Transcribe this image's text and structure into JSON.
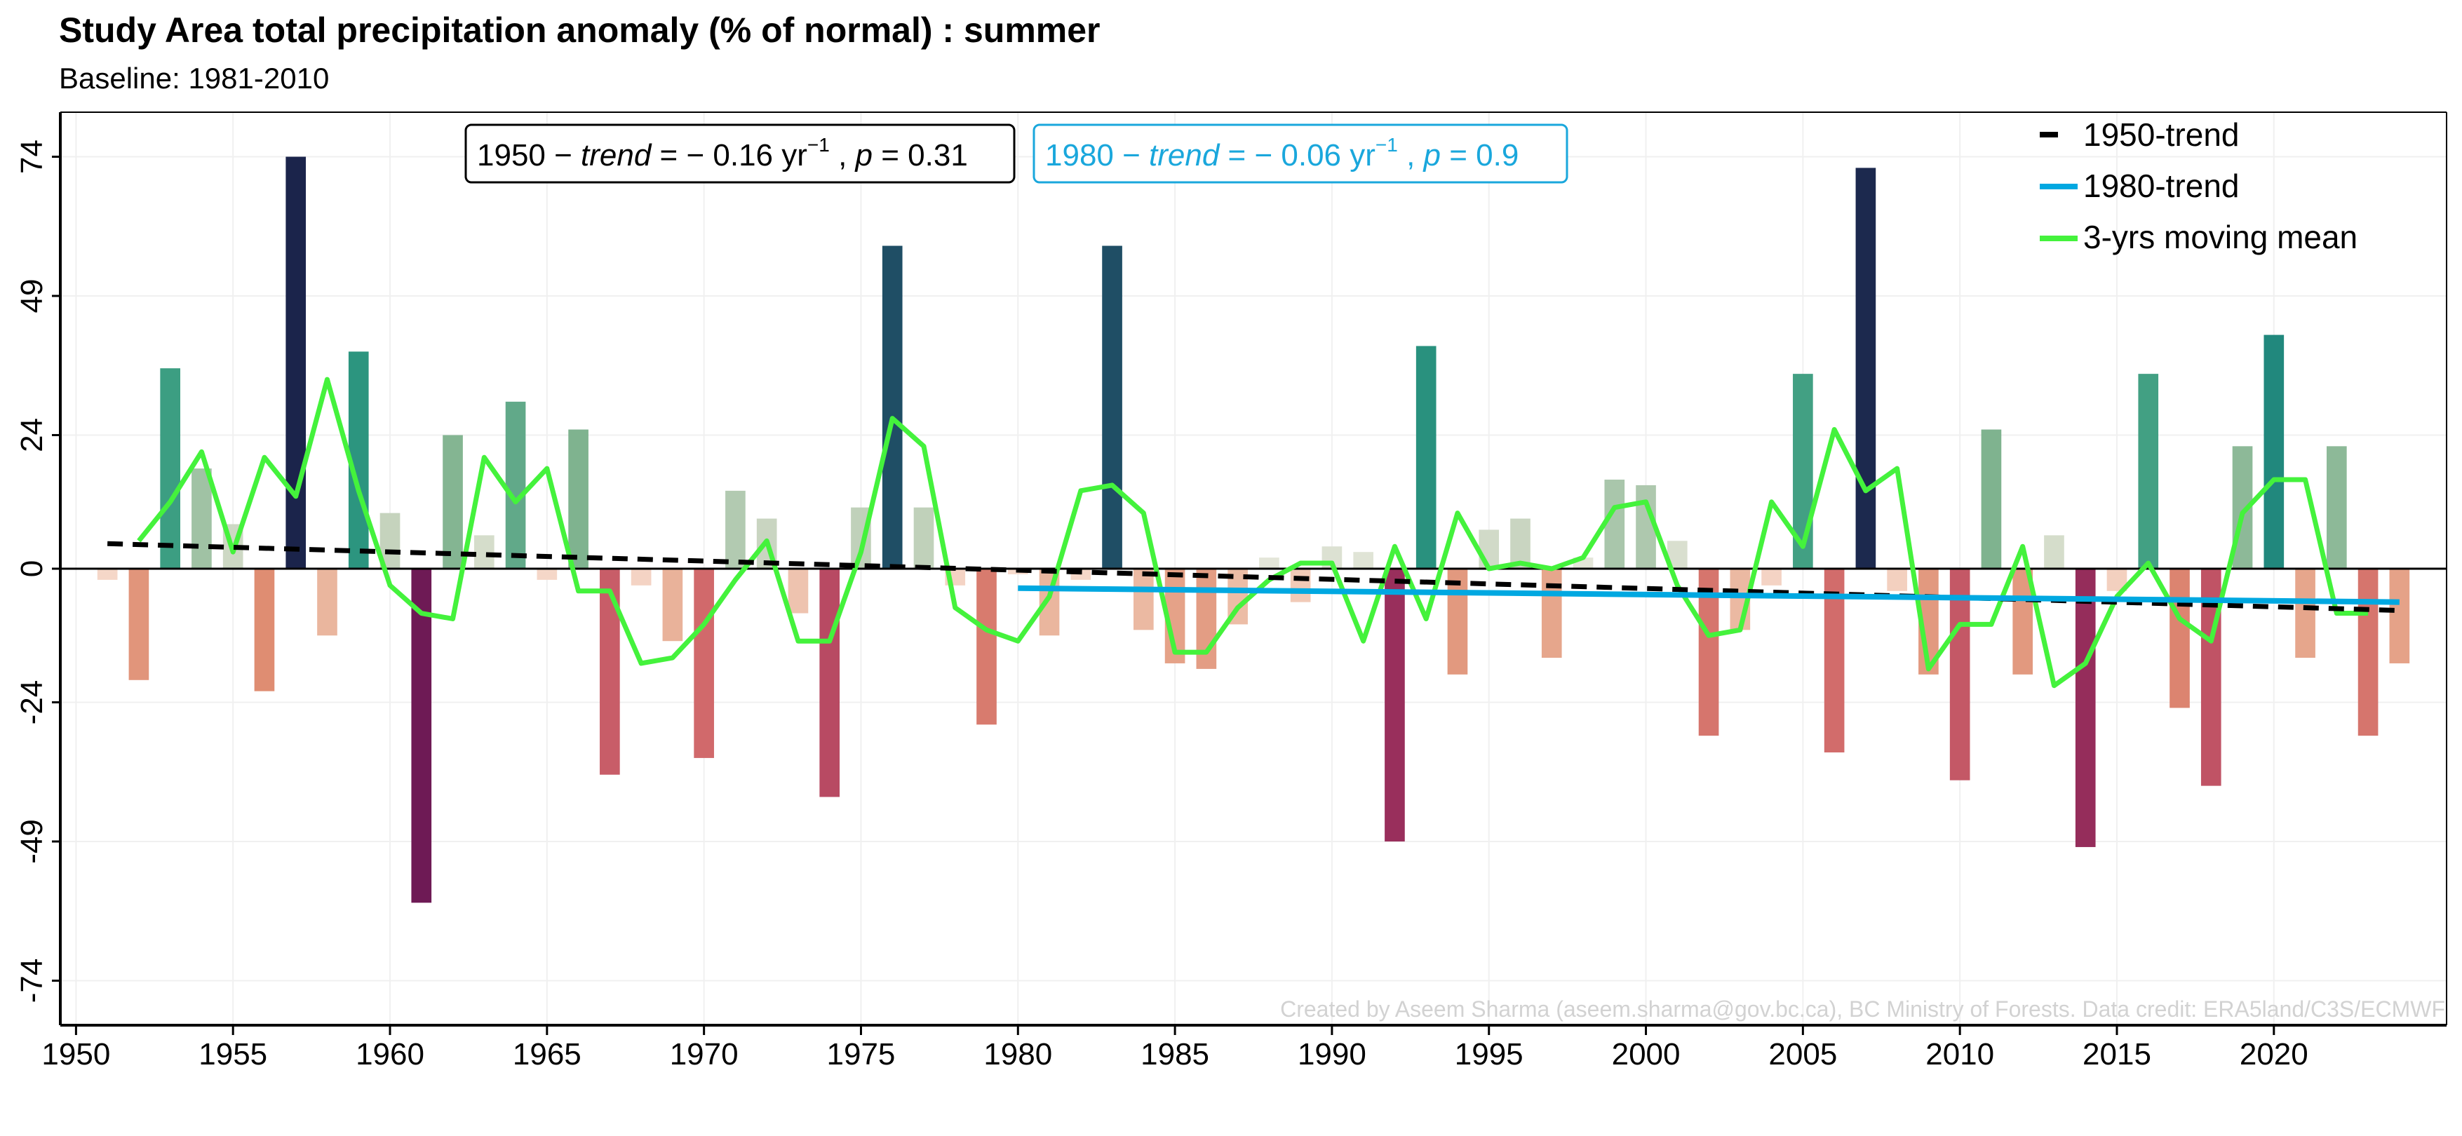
{
  "chart_data": {
    "type": "bar",
    "title": "Study Area total precipitation anomaly (% of normal) : summer",
    "subtitle": "Baseline: 1981-2010",
    "xlabel": "",
    "ylabel": "",
    "xlim": [
      1949.5,
      2025.5
    ],
    "ylim": [
      -82,
      82
    ],
    "x_ticks": [
      1950,
      1955,
      1960,
      1965,
      1970,
      1975,
      1980,
      1985,
      1990,
      1995,
      2000,
      2005,
      2010,
      2015,
      2020
    ],
    "x_tick_labels": [
      "1950",
      "1955",
      "1960",
      "1965",
      "1970",
      "1975",
      "1980",
      "1985",
      "1990",
      "1995",
      "2000",
      "2005",
      "2010",
      "2015",
      "2020"
    ],
    "y_ticks": [
      -74,
      -49,
      -24,
      0,
      24,
      49,
      74
    ],
    "y_tick_labels": [
      "-74",
      "-49",
      "-24",
      "0",
      "24",
      "49",
      "74"
    ],
    "years": [
      1951,
      1952,
      1953,
      1954,
      1955,
      1956,
      1957,
      1958,
      1959,
      1960,
      1961,
      1962,
      1963,
      1964,
      1965,
      1966,
      1967,
      1968,
      1969,
      1970,
      1971,
      1972,
      1973,
      1974,
      1975,
      1976,
      1977,
      1978,
      1979,
      1980,
      1981,
      1982,
      1983,
      1984,
      1985,
      1986,
      1987,
      1988,
      1989,
      1990,
      1991,
      1992,
      1993,
      1994,
      1995,
      1996,
      1997,
      1998,
      1999,
      2000,
      2001,
      2002,
      2003,
      2004,
      2005,
      2006,
      2007,
      2008,
      2009,
      2010,
      2011,
      2012,
      2013,
      2014,
      2015,
      2016,
      2017,
      2018,
      2019,
      2020,
      2021,
      2022,
      2023,
      2024
    ],
    "values": [
      -2,
      -20,
      36,
      18,
      8,
      -22,
      74,
      -12,
      39,
      10,
      -60,
      24,
      6,
      30,
      -2,
      25,
      -37,
      -3,
      -13,
      -34,
      14,
      9,
      -8,
      -41,
      11,
      58,
      11,
      -3,
      -28,
      -1,
      -12,
      -2,
      58,
      -11,
      -17,
      -18,
      -10,
      2,
      -6,
      4,
      3,
      -49,
      40,
      -19,
      7,
      9,
      -16,
      2,
      16,
      15,
      5,
      -30,
      -11,
      -3,
      35,
      -33,
      72,
      -4,
      -19,
      -38,
      25,
      -19,
      6,
      -50,
      -4,
      35,
      -25,
      -39,
      22,
      42,
      -16,
      22,
      -30,
      -17
    ],
    "series": [
      {
        "name": "3-yrs moving mean",
        "color": "#44f23c",
        "x": [
          1952,
          1953,
          1954,
          1955,
          1956,
          1957,
          1958,
          1959,
          1960,
          1961,
          1962,
          1963,
          1964,
          1965,
          1966,
          1967,
          1968,
          1969,
          1970,
          1971,
          1972,
          1973,
          1974,
          1975,
          1976,
          1977,
          1978,
          1979,
          1980,
          1981,
          1982,
          1983,
          1984,
          1985,
          1986,
          1987,
          1988,
          1989,
          1990,
          1991,
          1992,
          1993,
          1994,
          1995,
          1996,
          1997,
          1998,
          1999,
          2000,
          2001,
          2002,
          2003,
          2004,
          2005,
          2006,
          2007,
          2008,
          2009,
          2010,
          2011,
          2012,
          2013,
          2014,
          2015,
          2016,
          2017,
          2018,
          2019,
          2020,
          2021,
          2022,
          2023
        ],
        "y": [
          5,
          12,
          21,
          3,
          20,
          13,
          34,
          14,
          -3,
          -8,
          -9,
          20,
          12,
          18,
          -4,
          -4,
          -17,
          -16,
          -10,
          -2,
          5,
          -13,
          -13,
          3,
          27,
          22,
          -7,
          -11,
          -13,
          -5,
          14,
          15,
          10,
          -15,
          -15,
          -7,
          -2,
          1,
          1,
          -13,
          4,
          -9,
          10,
          0,
          1,
          0,
          2,
          11,
          12,
          -3,
          -12,
          -11,
          12,
          4,
          25,
          14,
          18,
          -18,
          -10,
          -10,
          4,
          -21,
          -17,
          -5,
          1,
          -9,
          -13,
          10,
          16,
          16,
          -8,
          -8
        ]
      },
      {
        "name": "1950-trend",
        "color": "#000000",
        "x": [
          1951,
          2024
        ],
        "y": [
          4.5,
          -7.5
        ]
      },
      {
        "name": "1980-trend",
        "color": "#00a8e1",
        "x": [
          1980,
          2024
        ],
        "y": [
          -3.5,
          -6.0
        ]
      }
    ],
    "legend": [
      "1950-trend",
      "1980-trend",
      "3-yrs moving mean"
    ],
    "legend_position": "top-right",
    "annotations": [
      {
        "text_start": "1950 − ",
        "trend_word": "trend",
        "text_mid": " = − 0.16 yr",
        "sup": "−1",
        "text_sep": " , ",
        "p_word": "p",
        "text_end": " = 0.31",
        "color": "#000000"
      },
      {
        "text_start": "1980 − ",
        "trend_word": "trend",
        "text_mid": " = − 0.06 yr",
        "sup": "−1",
        "text_sep": " , ",
        "p_word": "p",
        "text_end": " = 0.9",
        "color": "#1aa7dc"
      }
    ],
    "credit": "Created by Aseem Sharma (aseem.sharma@gov.bc.ca), BC Ministry of Forests. Data credit: ERA5land/C3S/ECMWF"
  }
}
